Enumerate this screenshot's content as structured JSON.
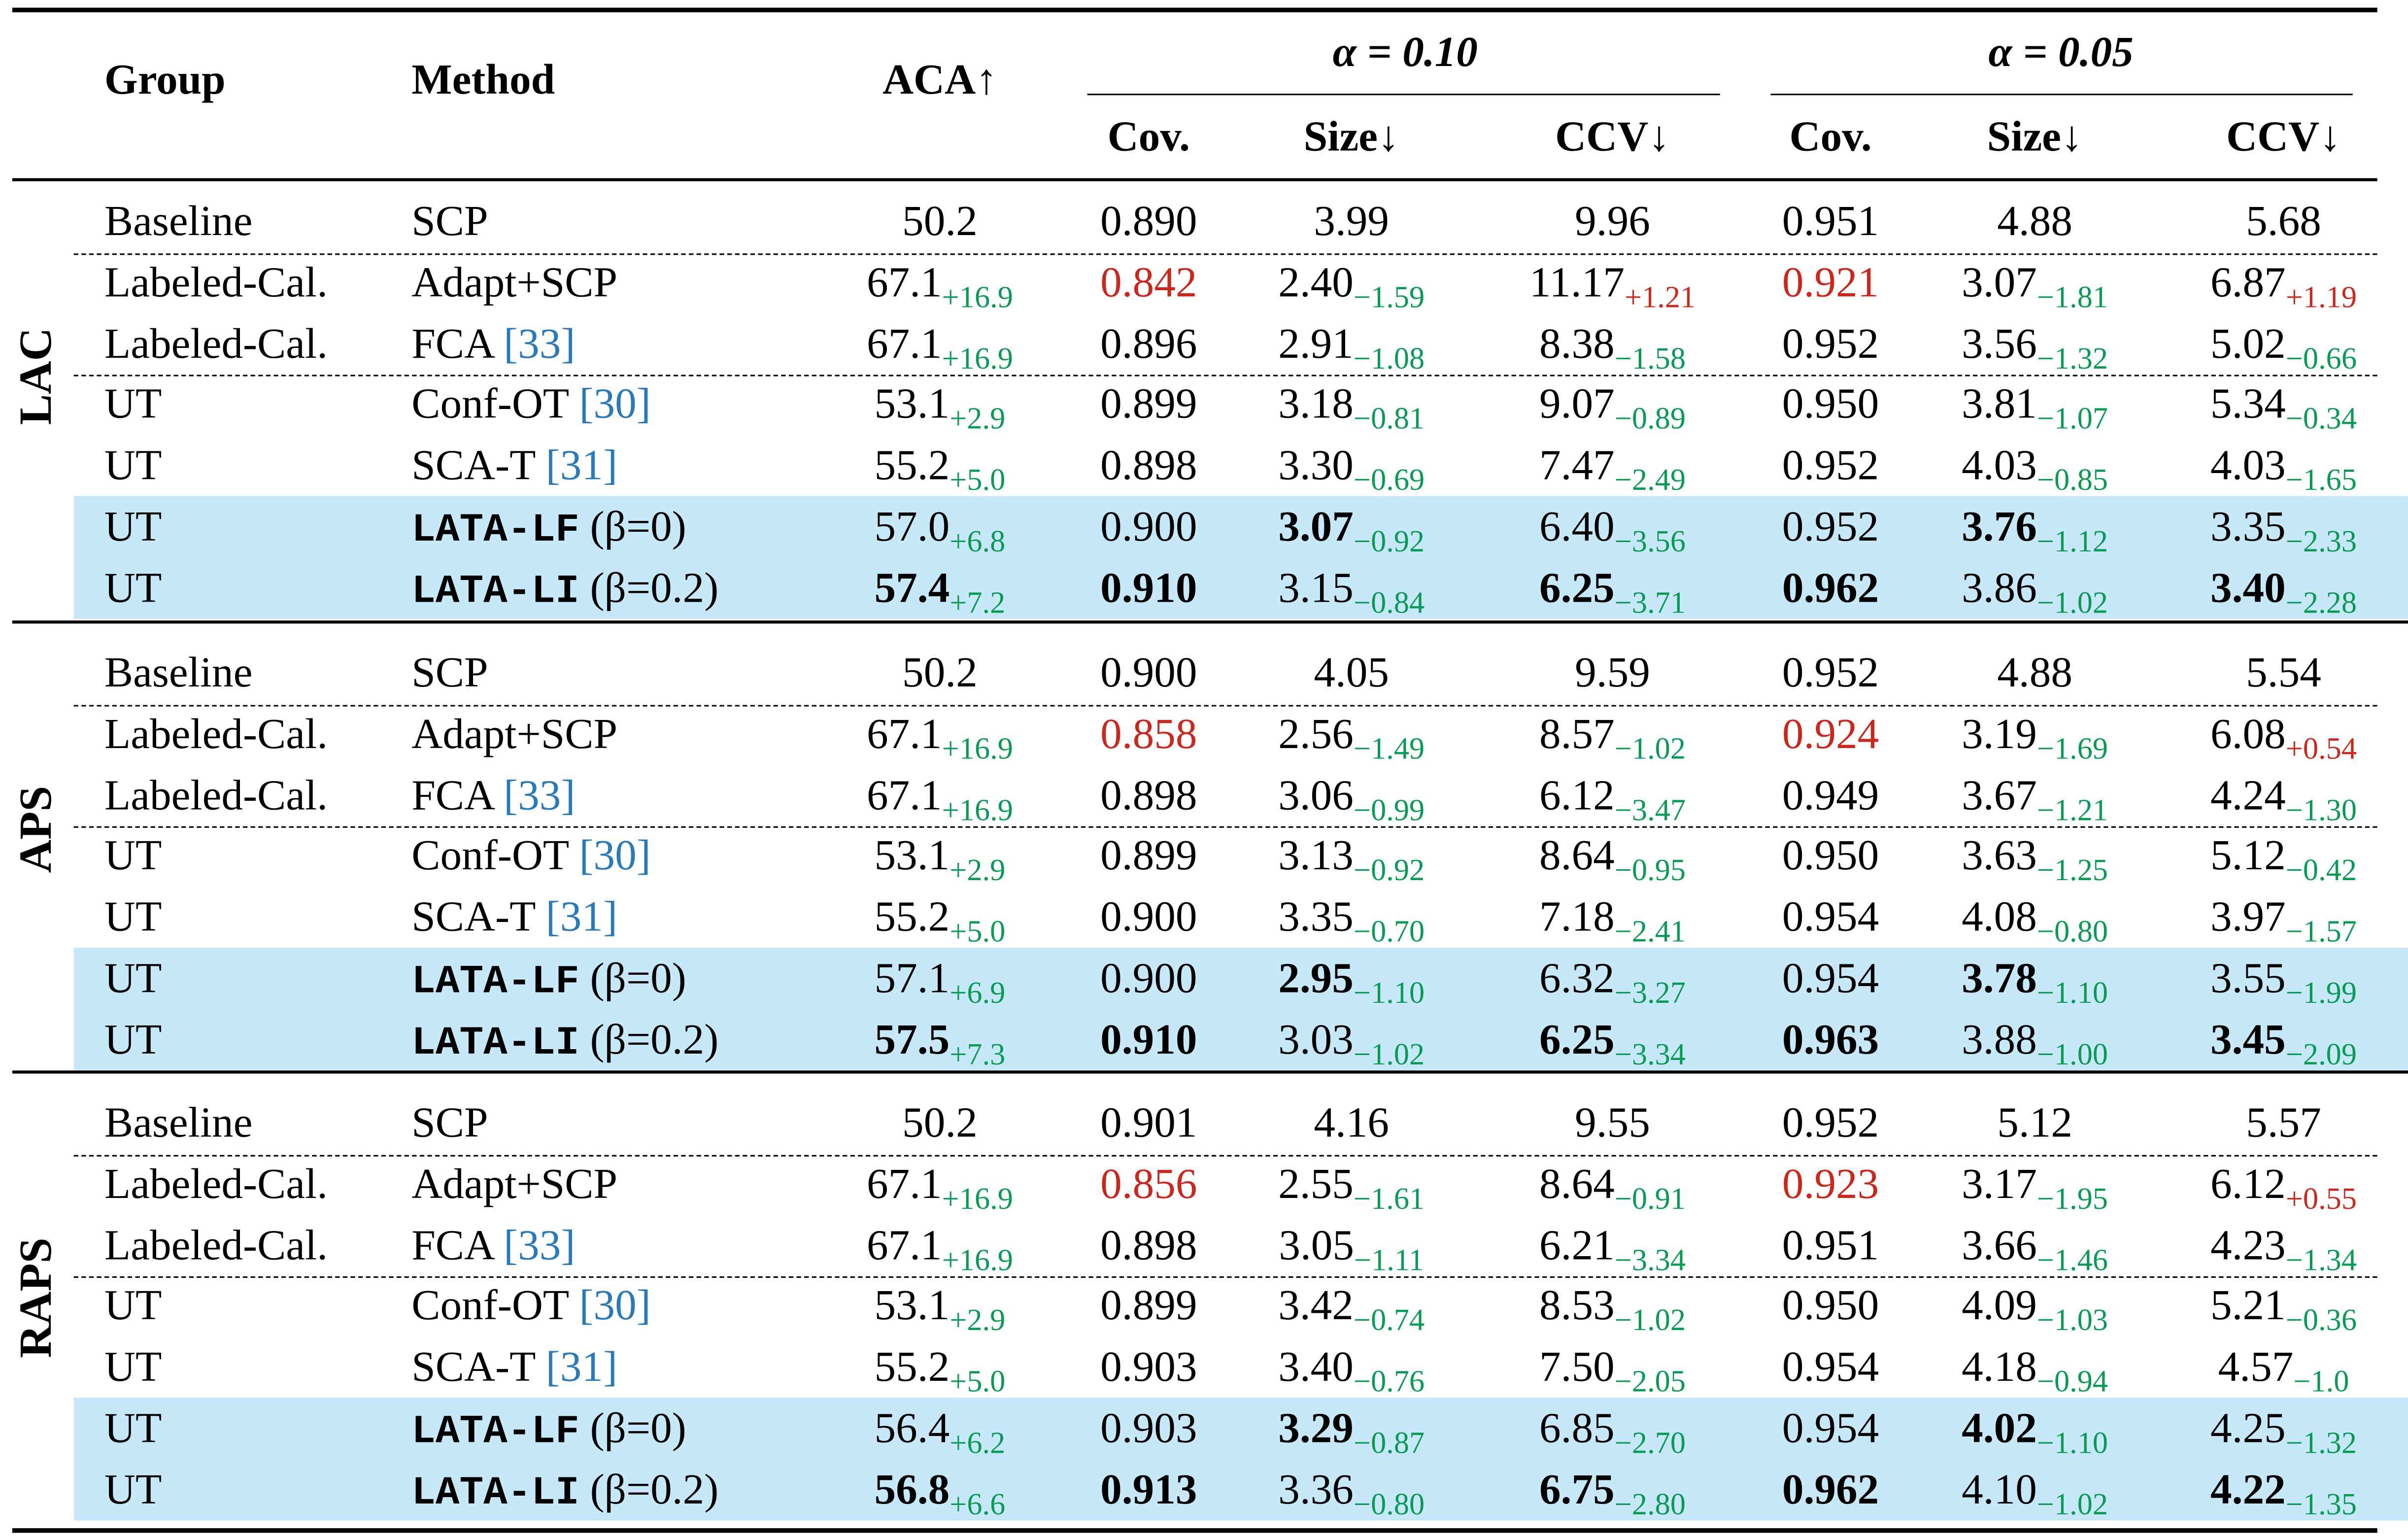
{
  "colors": {
    "green": "#0a9a55",
    "red": "#c8281e",
    "ref": "#2a7ab9",
    "highlight": "#c7e8f8"
  },
  "header": {
    "group": "Group",
    "method": "Method",
    "aca": "ACA↑",
    "alpha1": "α = 0.10",
    "alpha2": "α = 0.05",
    "sub": [
      "Cov.",
      "Size↓",
      "CCV↓",
      "Cov.",
      "Size↓",
      "CCV↓"
    ]
  },
  "sections": [
    {
      "label": "LAC",
      "rows": [
        {
          "group": "Baseline",
          "method": "SCP",
          "cells": [
            {
              "v": "50.2"
            },
            {
              "v": "0.890"
            },
            {
              "v": "3.99"
            },
            {
              "v": "9.96"
            },
            {
              "v": "0.951"
            },
            {
              "v": "4.88"
            },
            {
              "v": "5.68"
            }
          ]
        },
        {
          "group": "Labeled-Cal.",
          "method": "Adapt+SCP",
          "cells": [
            {
              "v": "67.1",
              "d": "+16.9"
            },
            {
              "v": "0.842",
              "r": true
            },
            {
              "v": "2.40",
              "d": "−1.59"
            },
            {
              "v": "11.17",
              "d": "+1.21"
            },
            {
              "v": "0.921",
              "r": true
            },
            {
              "v": "3.07",
              "d": "−1.81"
            },
            {
              "v": "6.87",
              "d": "+1.19"
            }
          ]
        },
        {
          "group": "Labeled-Cal.",
          "method": "FCA",
          "ref": "[33]",
          "cells": [
            {
              "v": "67.1",
              "d": "+16.9"
            },
            {
              "v": "0.896"
            },
            {
              "v": "2.91",
              "d": "−1.08"
            },
            {
              "v": "8.38",
              "d": "−1.58"
            },
            {
              "v": "0.952"
            },
            {
              "v": "3.56",
              "d": "−1.32"
            },
            {
              "v": "5.02",
              "d": "−0.66"
            }
          ]
        },
        {
          "group": "UT",
          "method": "Conf-OT",
          "ref": "[30]",
          "cells": [
            {
              "v": "53.1",
              "d": "+2.9"
            },
            {
              "v": "0.899"
            },
            {
              "v": "3.18",
              "d": "−0.81"
            },
            {
              "v": "9.07",
              "d": "−0.89"
            },
            {
              "v": "0.950"
            },
            {
              "v": "3.81",
              "d": "−1.07"
            },
            {
              "v": "5.34",
              "d": "−0.34"
            }
          ]
        },
        {
          "group": "UT",
          "method": "SCA-T",
          "ref": "[31]",
          "cells": [
            {
              "v": "55.2",
              "d": "+5.0"
            },
            {
              "v": "0.898"
            },
            {
              "v": "3.30",
              "d": "−0.69"
            },
            {
              "v": "7.47",
              "d": "−2.49"
            },
            {
              "v": "0.952"
            },
            {
              "v": "4.03",
              "d": "−0.85"
            },
            {
              "v": "4.03",
              "d": "−1.65"
            }
          ]
        },
        {
          "group": "UT",
          "method": "LATA-LF",
          "mono": true,
          "suffix": " (β=0)",
          "cells": [
            {
              "v": "57.0",
              "d": "+6.8"
            },
            {
              "v": "0.900"
            },
            {
              "v": "3.07",
              "d": "−0.92",
              "b": true
            },
            {
              "v": "6.40",
              "d": "−3.56"
            },
            {
              "v": "0.952"
            },
            {
              "v": "3.76",
              "d": "−1.12",
              "b": true
            },
            {
              "v": "3.35",
              "d": "−2.33"
            }
          ]
        },
        {
          "group": "UT",
          "method": "LATA-LI",
          "mono": true,
          "suffix": " (β=0.2)",
          "cells": [
            {
              "v": "57.4",
              "d": "+7.2",
              "b": true
            },
            {
              "v": "0.910",
              "b": true
            },
            {
              "v": "3.15",
              "d": "−0.84"
            },
            {
              "v": "6.25",
              "d": "−3.71",
              "b": true
            },
            {
              "v": "0.962",
              "b": true
            },
            {
              "v": "3.86",
              "d": "−1.02"
            },
            {
              "v": "3.40",
              "d": "−2.28",
              "b": true
            }
          ]
        }
      ]
    },
    {
      "label": "APS",
      "rows": [
        {
          "group": "Baseline",
          "method": "SCP",
          "cells": [
            {
              "v": "50.2"
            },
            {
              "v": "0.900"
            },
            {
              "v": "4.05"
            },
            {
              "v": "9.59"
            },
            {
              "v": "0.952"
            },
            {
              "v": "4.88"
            },
            {
              "v": "5.54"
            }
          ]
        },
        {
          "group": "Labeled-Cal.",
          "method": "Adapt+SCP",
          "cells": [
            {
              "v": "67.1",
              "d": "+16.9"
            },
            {
              "v": "0.858",
              "r": true
            },
            {
              "v": "2.56",
              "d": "−1.49"
            },
            {
              "v": "8.57",
              "d": "−1.02"
            },
            {
              "v": "0.924",
              "r": true
            },
            {
              "v": "3.19",
              "d": "−1.69"
            },
            {
              "v": "6.08",
              "d": "+0.54"
            }
          ]
        },
        {
          "group": "Labeled-Cal.",
          "method": "FCA",
          "ref": "[33]",
          "cells": [
            {
              "v": "67.1",
              "d": "+16.9"
            },
            {
              "v": "0.898"
            },
            {
              "v": "3.06",
              "d": "−0.99"
            },
            {
              "v": "6.12",
              "d": "−3.47"
            },
            {
              "v": "0.949"
            },
            {
              "v": "3.67",
              "d": "−1.21"
            },
            {
              "v": "4.24",
              "d": "−1.30"
            }
          ]
        },
        {
          "group": "UT",
          "method": "Conf-OT",
          "ref": "[30]",
          "cells": [
            {
              "v": "53.1",
              "d": "+2.9"
            },
            {
              "v": "0.899"
            },
            {
              "v": "3.13",
              "d": "−0.92"
            },
            {
              "v": "8.64",
              "d": "−0.95"
            },
            {
              "v": "0.950"
            },
            {
              "v": "3.63",
              "d": "−1.25"
            },
            {
              "v": "5.12",
              "d": "−0.42"
            }
          ]
        },
        {
          "group": "UT",
          "method": "SCA-T",
          "ref": "[31]",
          "cells": [
            {
              "v": "55.2",
              "d": "+5.0"
            },
            {
              "v": "0.900"
            },
            {
              "v": "3.35",
              "d": "−0.70"
            },
            {
              "v": "7.18",
              "d": "−2.41"
            },
            {
              "v": "0.954"
            },
            {
              "v": "4.08",
              "d": "−0.80"
            },
            {
              "v": "3.97",
              "d": "−1.57"
            }
          ]
        },
        {
          "group": "UT",
          "method": "LATA-LF",
          "mono": true,
          "suffix": " (β=0)",
          "cells": [
            {
              "v": "57.1",
              "d": "+6.9"
            },
            {
              "v": "0.900"
            },
            {
              "v": "2.95",
              "d": "−1.10",
              "b": true
            },
            {
              "v": "6.32",
              "d": "−3.27"
            },
            {
              "v": "0.954"
            },
            {
              "v": "3.78",
              "d": "−1.10",
              "b": true
            },
            {
              "v": "3.55",
              "d": "−1.99"
            }
          ]
        },
        {
          "group": "UT",
          "method": "LATA-LI",
          "mono": true,
          "suffix": " (β=0.2)",
          "cells": [
            {
              "v": "57.5",
              "d": "+7.3",
              "b": true
            },
            {
              "v": "0.910",
              "b": true
            },
            {
              "v": "3.03",
              "d": "−1.02"
            },
            {
              "v": "6.25",
              "d": "−3.34",
              "b": true
            },
            {
              "v": "0.963",
              "b": true
            },
            {
              "v": "3.88",
              "d": "−1.00"
            },
            {
              "v": "3.45",
              "d": "−2.09",
              "b": true
            }
          ]
        }
      ]
    },
    {
      "label": "RAPS",
      "rows": [
        {
          "group": "Baseline",
          "method": "SCP",
          "cells": [
            {
              "v": "50.2"
            },
            {
              "v": "0.901"
            },
            {
              "v": "4.16"
            },
            {
              "v": "9.55"
            },
            {
              "v": "0.952"
            },
            {
              "v": "5.12"
            },
            {
              "v": "5.57"
            }
          ]
        },
        {
          "group": "Labeled-Cal.",
          "method": "Adapt+SCP",
          "cells": [
            {
              "v": "67.1",
              "d": "+16.9"
            },
            {
              "v": "0.856",
              "r": true
            },
            {
              "v": "2.55",
              "d": "−1.61"
            },
            {
              "v": "8.64",
              "d": "−0.91"
            },
            {
              "v": "0.923",
              "r": true
            },
            {
              "v": "3.17",
              "d": "−1.95"
            },
            {
              "v": "6.12",
              "d": "+0.55"
            }
          ]
        },
        {
          "group": "Labeled-Cal.",
          "method": "FCA",
          "ref": "[33]",
          "cells": [
            {
              "v": "67.1",
              "d": "+16.9"
            },
            {
              "v": "0.898"
            },
            {
              "v": "3.05",
              "d": "−1.11"
            },
            {
              "v": "6.21",
              "d": "−3.34"
            },
            {
              "v": "0.951"
            },
            {
              "v": "3.66",
              "d": "−1.46"
            },
            {
              "v": "4.23",
              "d": "−1.34"
            }
          ]
        },
        {
          "group": "UT",
          "method": "Conf-OT",
          "ref": "[30]",
          "cells": [
            {
              "v": "53.1",
              "d": "+2.9"
            },
            {
              "v": "0.899"
            },
            {
              "v": "3.42",
              "d": "−0.74"
            },
            {
              "v": "8.53",
              "d": "−1.02"
            },
            {
              "v": "0.950"
            },
            {
              "v": "4.09",
              "d": "−1.03"
            },
            {
              "v": "5.21",
              "d": "−0.36"
            }
          ]
        },
        {
          "group": "UT",
          "method": "SCA-T",
          "ref": "[31]",
          "cells": [
            {
              "v": "55.2",
              "d": "+5.0"
            },
            {
              "v": "0.903"
            },
            {
              "v": "3.40",
              "d": "−0.76"
            },
            {
              "v": "7.50",
              "d": "−2.05"
            },
            {
              "v": "0.954"
            },
            {
              "v": "4.18",
              "d": "−0.94"
            },
            {
              "v": "4.57",
              "d": "−1.0"
            }
          ]
        },
        {
          "group": "UT",
          "method": "LATA-LF",
          "mono": true,
          "suffix": " (β=0)",
          "cells": [
            {
              "v": "56.4",
              "d": "+6.2"
            },
            {
              "v": "0.903"
            },
            {
              "v": "3.29",
              "d": "−0.87",
              "b": true
            },
            {
              "v": "6.85",
              "d": "−2.70"
            },
            {
              "v": "0.954"
            },
            {
              "v": "4.02",
              "d": "−1.10",
              "b": true
            },
            {
              "v": "4.25",
              "d": "−1.32"
            }
          ]
        },
        {
          "group": "UT",
          "method": "LATA-LI",
          "mono": true,
          "suffix": " (β=0.2)",
          "cells": [
            {
              "v": "56.8",
              "d": "+6.6",
              "b": true
            },
            {
              "v": "0.913",
              "b": true
            },
            {
              "v": "3.36",
              "d": "−0.80"
            },
            {
              "v": "6.75",
              "d": "−2.80",
              "b": true
            },
            {
              "v": "0.962",
              "b": true
            },
            {
              "v": "4.10",
              "d": "−1.02"
            },
            {
              "v": "4.22",
              "d": "−1.35",
              "b": true
            }
          ]
        }
      ]
    }
  ]
}
